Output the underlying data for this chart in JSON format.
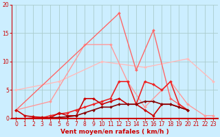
{
  "background_color": "#cceeff",
  "grid_color": "#aacccc",
  "xlabel": "Vent moyen/en rafales ( km/h )",
  "xlim": [
    -0.5,
    23.5
  ],
  "ylim": [
    0,
    20
  ],
  "yticks": [
    0,
    5,
    10,
    15,
    20
  ],
  "xticks": [
    0,
    1,
    2,
    3,
    4,
    5,
    6,
    7,
    8,
    9,
    10,
    11,
    12,
    13,
    14,
    15,
    16,
    17,
    18,
    19,
    20,
    21,
    22,
    23
  ],
  "series": [
    {
      "x": [
        0,
        5,
        10,
        15,
        20,
        23
      ],
      "y": [
        5.0,
        6.5,
        10.0,
        9.0,
        10.5,
        6.5
      ],
      "color": "#ffbbbb",
      "lw": 1.0
    },
    {
      "x": [
        0,
        4,
        8,
        11,
        13,
        15,
        18,
        20,
        22,
        23
      ],
      "y": [
        1.5,
        3.0,
        13.0,
        13.0,
        6.5,
        2.0,
        6.5,
        2.5,
        0.5,
        0.5
      ],
      "color": "#ff9999",
      "lw": 1.0
    },
    {
      "x": [
        0,
        12,
        14,
        16,
        18,
        20
      ],
      "y": [
        1.5,
        18.5,
        8.5,
        15.5,
        3.5,
        1.5
      ],
      "color": "#ff6666",
      "lw": 1.0
    },
    {
      "x": [
        0,
        1,
        2,
        3,
        4,
        5,
        6,
        7,
        8,
        9,
        10,
        11,
        12,
        13,
        14,
        15,
        16,
        17,
        18,
        19,
        20
      ],
      "y": [
        0.0,
        0.0,
        0.1,
        0.1,
        0.5,
        0.8,
        1.0,
        1.5,
        2.0,
        2.5,
        3.0,
        3.5,
        6.5,
        6.5,
        2.5,
        6.5,
        6.0,
        5.0,
        6.5,
        2.5,
        1.5
      ],
      "color": "#ee2222",
      "lw": 1.2
    },
    {
      "x": [
        0,
        1,
        2,
        3,
        4,
        5,
        6,
        7,
        8,
        9,
        10,
        11,
        12,
        13,
        14,
        15,
        16,
        17,
        18,
        19,
        20
      ],
      "y": [
        1.5,
        0.5,
        0.3,
        0.2,
        0.1,
        1.0,
        0.5,
        0.5,
        3.5,
        3.5,
        2.5,
        3.0,
        3.5,
        2.5,
        2.5,
        1.5,
        0.5,
        2.5,
        2.5,
        2.0,
        1.5
      ],
      "color": "#cc0000",
      "lw": 1.2
    },
    {
      "x": [
        0,
        1,
        2,
        3,
        4,
        5,
        6,
        7,
        8,
        9,
        10,
        11,
        12,
        13,
        14,
        15,
        16,
        17,
        18,
        19,
        20
      ],
      "y": [
        0.0,
        0.0,
        0.0,
        0.0,
        0.1,
        0.2,
        0.3,
        0.5,
        1.0,
        1.5,
        2.0,
        2.0,
        2.5,
        2.5,
        2.5,
        3.0,
        3.0,
        2.5,
        2.5,
        2.0,
        1.5
      ],
      "color": "#880000",
      "lw": 1.2
    }
  ],
  "marker": "D",
  "marker_size": 2.0,
  "tick_fontsize": 5.5,
  "xlabel_fontsize": 6.5,
  "xlabel_color": "#cc0000",
  "tick_color": "#cc0000",
  "spine_color": "#cc0000"
}
